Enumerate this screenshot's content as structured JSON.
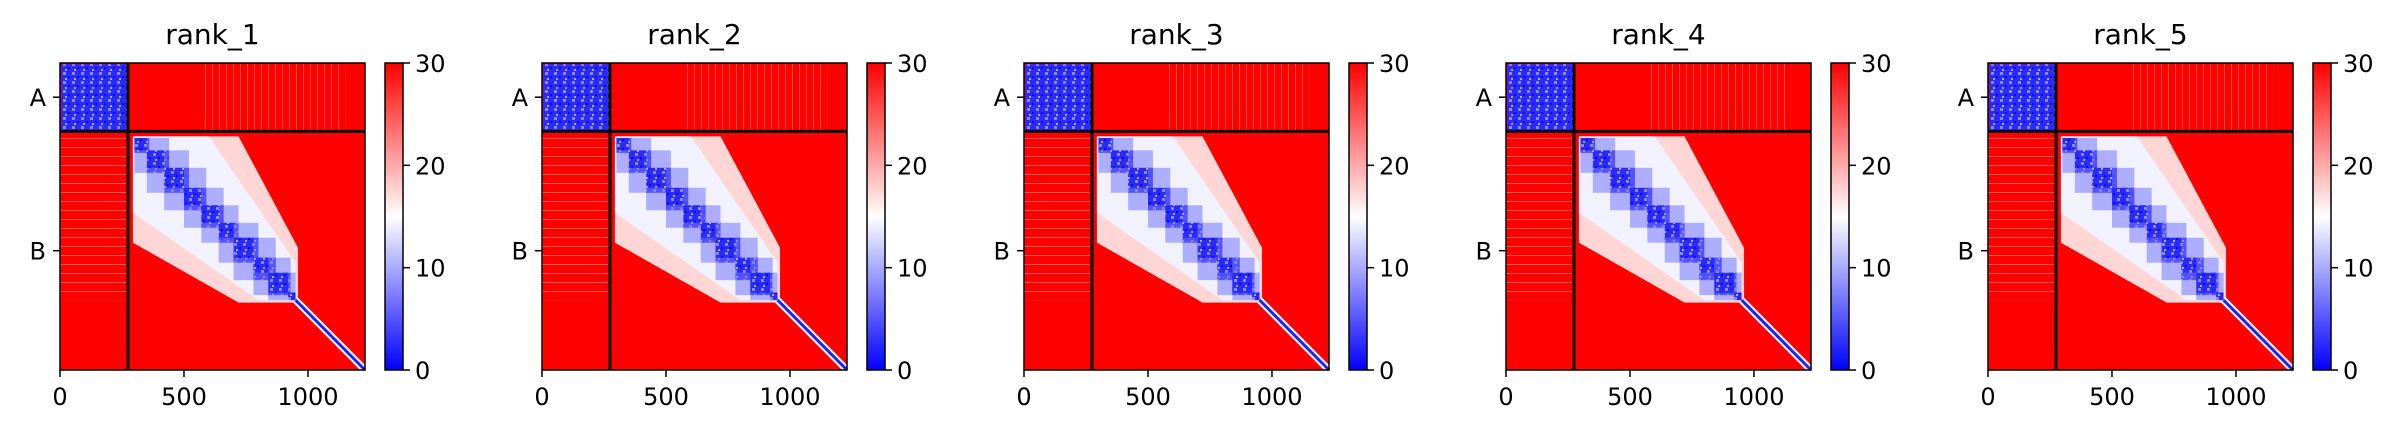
{
  "chart_data": {
    "type": "heatmap",
    "colormap": {
      "name": "bwr",
      "colors": [
        "#0000ff",
        "#ffffff",
        "#ff0000"
      ]
    },
    "chain_boundary": 274,
    "matrix_size": 1230,
    "x_ticks": [
      0,
      500,
      1000
    ],
    "chain_labels": [
      "A",
      "B"
    ],
    "colorbar": {
      "min": 0,
      "max": 30,
      "ticks": [
        0,
        10,
        20,
        30
      ]
    },
    "panels": [
      {
        "title": "rank_1"
      },
      {
        "title": "rank_2"
      },
      {
        "title": "rank_3"
      },
      {
        "title": "rank_4"
      },
      {
        "title": "rank_5"
      }
    ]
  }
}
